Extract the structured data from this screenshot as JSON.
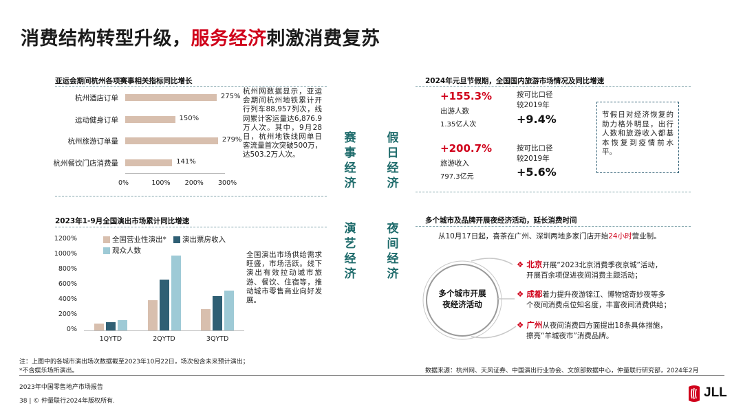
{
  "title": {
    "part1": "消费结构转型升级，",
    "highlight": "服务经济",
    "part2": "刺激消费复苏"
  },
  "colors": {
    "accent_red": "#d0021b",
    "teal": "#1e6b6b",
    "bar_tan": "#d8bfae",
    "bar_dark": "#2f5f74",
    "bar_light": "#9ecad6"
  },
  "center_labels": {
    "event_economy": [
      "赛",
      "事",
      "经",
      "济"
    ],
    "holiday_economy": [
      "假",
      "日",
      "经",
      "济"
    ],
    "arts_economy": [
      "演",
      "艺",
      "经",
      "济"
    ],
    "night_economy": [
      "夜",
      "间",
      "经",
      "济"
    ]
  },
  "asian_games": {
    "section_title": "亚运会期间杭州各项赛事相关指标同比增长",
    "description": "杭州网数据显示，亚运会期间杭州地铁累计开行列车88,957列次，线网累计客运量达6,876.9万人次。其中，9月28日，杭州地铁线网单日客流量首次突破500万，达503.2万人次。",
    "chart_data": {
      "type": "bar",
      "orientation": "horizontal",
      "categories": [
        "杭州酒店订单",
        "运动健身订单",
        "杭州旅游订单量",
        "杭州餐饮门店消费量"
      ],
      "values": [
        275,
        150,
        279,
        141
      ],
      "value_labels": [
        "275%",
        "150%",
        "279%",
        "141%"
      ],
      "xlim": [
        0,
        300
      ],
      "x_ticks": [
        "0%",
        "100%",
        "200%",
        "300%"
      ]
    }
  },
  "new_year": {
    "section_title": "2024年元旦节假期，全国国内旅游市场情况及同比增速",
    "trips_growth": "+155.3%",
    "trips_label": "出游人数",
    "trips_value": "1.35亿人次",
    "trips_cmp_line1": "按可比口径",
    "trips_cmp_line2": "较2019年",
    "trips_cmp_value": "+9.4%",
    "revenue_growth": "+200.7%",
    "revenue_label": "旅游收入",
    "revenue_value": "797.3亿元",
    "revenue_cmp_line1": "按可比口径",
    "revenue_cmp_line2": "较2019年",
    "revenue_cmp_value": "+5.6%",
    "box_text": "节假日对经济恢复的助力格外明显，出行人数和旅游收入都基本恢复到疫情前水平。"
  },
  "performance": {
    "section_title": "2023年1-9月全国演出市场累计同比增速",
    "description": "全国演出市场供给需求旺盛，市场活跃。线下演出有效拉动城市旅游、餐饮、住宿等，推动城市零售商业向好发展。",
    "chart_data": {
      "type": "bar",
      "categories": [
        "1QYTD",
        "2QYTD",
        "3QYTD"
      ],
      "series": [
        {
          "name": "全国营业性演出*",
          "values": [
            95,
            400,
            280
          ]
        },
        {
          "name": "演出票房收入",
          "values": [
            110,
            675,
            455
          ]
        },
        {
          "name": "观众人数",
          "values": [
            140,
            995,
            530
          ]
        }
      ],
      "ylim": [
        0,
        1200
      ],
      "y_ticks": [
        "0%",
        "200%",
        "400%",
        "600%",
        "800%",
        "1000%",
        "1200%"
      ]
    }
  },
  "night": {
    "section_title": "多个城市及品牌开展夜经济活动，延长消费时间",
    "heytea_pre": "从10月17日起，喜茶在广州、深圳两地多家门店开始",
    "heytea_hl": "24小时",
    "heytea_post": "营业制。",
    "circle_line1": "多个城市开展",
    "circle_line2": "夜经济活动",
    "items": [
      {
        "city": "北京",
        "line1": "开展“2023北京消费季夜京城”活动，",
        "line2": "开展百余项促进夜间消费主题活动；"
      },
      {
        "city": "成都",
        "line1": "着力提升夜游锦江、博物馆奇妙夜等多",
        "line2": "个夜间消费点位知名度，丰富夜间消费供给；"
      },
      {
        "city": "广州",
        "line1": "从夜间消费四方面提出18条具体措施，",
        "line2": "擦亮“羊城夜市”消费品牌。"
      }
    ]
  },
  "footer": {
    "note1": "注：上图中的各城市演出场次数据截至2023年10月22日，场次包含未来预计演出；",
    "note2": "*不含娱乐场所演出。",
    "source": "数据来源：杭州网、天风证券、中国演出行业协会、文旅部数据中心，仲量联行研究部，2024年2月",
    "report": "2023年中国零售地产市场报告",
    "page": "38",
    "copyright": "© 仲量联行2024年版权所有.",
    "logo": "JLL"
  }
}
